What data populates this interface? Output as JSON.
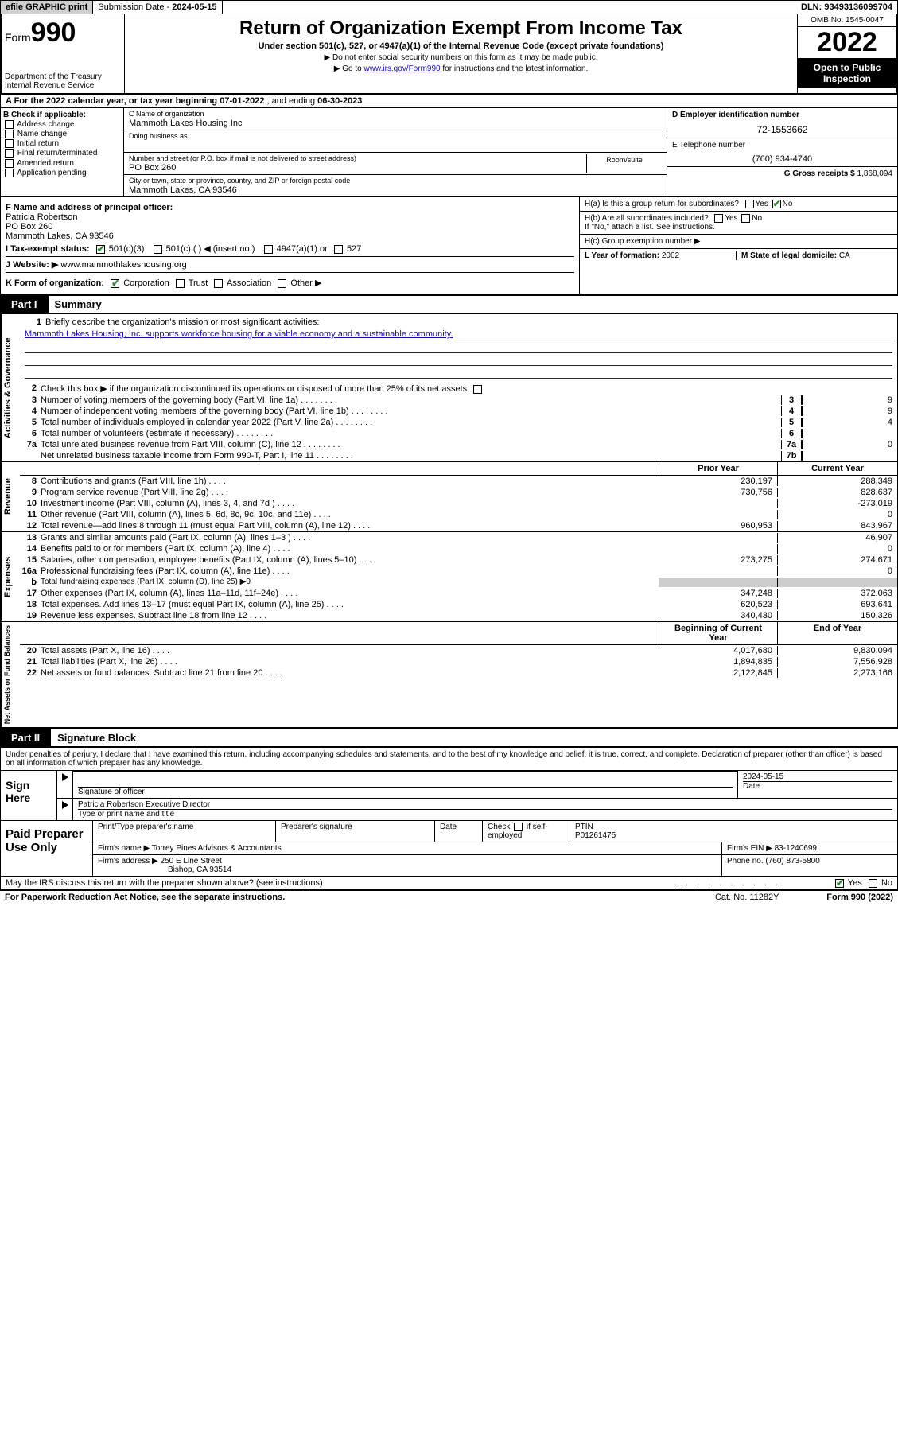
{
  "topbar": {
    "efile": "efile GRAPHIC print",
    "sub_label": "Submission Date - ",
    "sub_date": "2024-05-15",
    "dln_label": "DLN: ",
    "dln": "93493136099704"
  },
  "header": {
    "form_prefix": "Form",
    "form_num": "990",
    "dept": "Department of the Treasury\nInternal Revenue Service",
    "title": "Return of Organization Exempt From Income Tax",
    "sub": "Under section 501(c), 527, or 4947(a)(1) of the Internal Revenue Code (except private foundations)",
    "note1": "▶ Do not enter social security numbers on this form as it may be made public.",
    "note2_a": "▶ Go to ",
    "note2_link": "www.irs.gov/Form990",
    "note2_b": " for instructions and the latest information.",
    "omb": "OMB No. 1545-0047",
    "year": "2022",
    "open": "Open to Public Inspection"
  },
  "line_a": {
    "text_a": "A For the 2022 calendar year, or tax year beginning ",
    "start": "07-01-2022",
    "text_b": " , and ending ",
    "end": "06-30-2023"
  },
  "col_b": {
    "hdr": "B Check if applicable:",
    "opts": [
      "Address change",
      "Name change",
      "Initial return",
      "Final return/terminated",
      "Amended return",
      "Application pending"
    ]
  },
  "col_c": {
    "name_lbl": "C Name of organization",
    "name": "Mammoth Lakes Housing Inc",
    "dba_lbl": "Doing business as",
    "addr_lbl": "Number and street (or P.O. box if mail is not delivered to street address)",
    "room_lbl": "Room/suite",
    "addr": "PO Box 260",
    "city_lbl": "City or town, state or province, country, and ZIP or foreign postal code",
    "city": "Mammoth Lakes, CA  93546"
  },
  "col_de": {
    "d_lbl": "D Employer identification number",
    "d_val": "72-1553662",
    "e_lbl": "E Telephone number",
    "e_val": "(760) 934-4740",
    "g_lbl": "G Gross receipts $ ",
    "g_val": "1,868,094"
  },
  "blk_f": {
    "f_lbl": "F Name and address of principal officer:",
    "f_name": "Patricia Robertson",
    "f_addr1": "PO Box 260",
    "f_addr2": "Mammoth Lakes, CA  93546",
    "i_lbl": "I     Tax-exempt status:",
    "i_501c3": "501(c)(3)",
    "i_501c": "501(c) (  ) ◀ (insert no.)",
    "i_4947": "4947(a)(1) or",
    "i_527": "527",
    "j_lbl": "J    Website: ▶  ",
    "j_val": "www.mammothlakeshousing.org",
    "k_lbl": "K Form of organization:",
    "k_corp": "Corporation",
    "k_trust": "Trust",
    "k_assoc": "Association",
    "k_other": "Other ▶"
  },
  "blk_h": {
    "ha": "H(a)  Is this a group return for subordinates?",
    "yes": "Yes",
    "no": "No",
    "hb": "H(b)  Are all subordinates included?",
    "hb2": "If \"No,\" attach a list. See instructions.",
    "hc": "H(c)  Group exemption number ▶",
    "l_lbl": "L Year of formation: ",
    "l_val": "2002",
    "m_lbl": "M State of legal domicile: ",
    "m_val": "CA"
  },
  "part1": {
    "tab": "Part I",
    "title": "Summary"
  },
  "p1_gov": {
    "q1_lbl": "Briefly describe the organization's mission or most significant activities:",
    "q1_val": "Mammoth Lakes Housing, Inc. supports workforce housing for a viable economy and a sustainable community.",
    "q2": "Check this box ▶  if the organization discontinued its operations or disposed of more than 25% of its net assets.",
    "rows": [
      {
        "n": "3",
        "t": "Number of voting members of the governing body (Part VI, line 1a)",
        "nb": "3",
        "v": "9"
      },
      {
        "n": "4",
        "t": "Number of independent voting members of the governing body (Part VI, line 1b)",
        "nb": "4",
        "v": "9"
      },
      {
        "n": "5",
        "t": "Total number of individuals employed in calendar year 2022 (Part V, line 2a)",
        "nb": "5",
        "v": "4"
      },
      {
        "n": "6",
        "t": "Total number of volunteers (estimate if necessary)",
        "nb": "6",
        "v": ""
      },
      {
        "n": "7a",
        "t": "Total unrelated business revenue from Part VIII, column (C), line 12",
        "nb": "7a",
        "v": "0"
      },
      {
        "n": "",
        "t": "Net unrelated business taxable income from Form 990-T, Part I, line 11",
        "nb": "7b",
        "v": ""
      }
    ],
    "sidelbl": "Activities & Governance"
  },
  "p1_rev": {
    "hdr_b": "b",
    "hdr_py": "Prior Year",
    "hdr_cy": "Current Year",
    "rows": [
      {
        "n": "8",
        "t": "Contributions and grants (Part VIII, line 1h)",
        "py": "230,197",
        "cy": "288,349"
      },
      {
        "n": "9",
        "t": "Program service revenue (Part VIII, line 2g)",
        "py": "730,756",
        "cy": "828,637"
      },
      {
        "n": "10",
        "t": "Investment income (Part VIII, column (A), lines 3, 4, and 7d )",
        "py": "",
        "cy": "-273,019"
      },
      {
        "n": "11",
        "t": "Other revenue (Part VIII, column (A), lines 5, 6d, 8c, 9c, 10c, and 11e)",
        "py": "",
        "cy": "0"
      },
      {
        "n": "12",
        "t": "Total revenue—add lines 8 through 11 (must equal Part VIII, column (A), line 12)",
        "py": "960,953",
        "cy": "843,967"
      }
    ],
    "sidelbl": "Revenue"
  },
  "p1_exp": {
    "rows": [
      {
        "n": "13",
        "t": "Grants and similar amounts paid (Part IX, column (A), lines 1–3 )",
        "py": "",
        "cy": "46,907"
      },
      {
        "n": "14",
        "t": "Benefits paid to or for members (Part IX, column (A), line 4)",
        "py": "",
        "cy": "0"
      },
      {
        "n": "15",
        "t": "Salaries, other compensation, employee benefits (Part IX, column (A), lines 5–10)",
        "py": "273,275",
        "cy": "274,671"
      },
      {
        "n": "16a",
        "t": "Professional fundraising fees (Part IX, column (A), line 11e)",
        "py": "",
        "cy": "0"
      },
      {
        "n": "b",
        "t": "Total fundraising expenses (Part IX, column (D), line 25) ▶0",
        "py": null,
        "cy": null
      },
      {
        "n": "17",
        "t": "Other expenses (Part IX, column (A), lines 11a–11d, 11f–24e)",
        "py": "347,248",
        "cy": "372,063"
      },
      {
        "n": "18",
        "t": "Total expenses. Add lines 13–17 (must equal Part IX, column (A), line 25)",
        "py": "620,523",
        "cy": "693,641"
      },
      {
        "n": "19",
        "t": "Revenue less expenses. Subtract line 18 from line 12",
        "py": "340,430",
        "cy": "150,326"
      }
    ],
    "sidelbl": "Expenses"
  },
  "p1_na": {
    "hdr_by": "Beginning of Current Year",
    "hdr_ey": "End of Year",
    "rows": [
      {
        "n": "20",
        "t": "Total assets (Part X, line 16)",
        "py": "4,017,680",
        "cy": "9,830,094"
      },
      {
        "n": "21",
        "t": "Total liabilities (Part X, line 26)",
        "py": "1,894,835",
        "cy": "7,556,928"
      },
      {
        "n": "22",
        "t": "Net assets or fund balances. Subtract line 21 from line 20",
        "py": "2,122,845",
        "cy": "2,273,166"
      }
    ],
    "sidelbl": "Net Assets or Fund Balances"
  },
  "part2": {
    "tab": "Part II",
    "title": "Signature Block"
  },
  "sig": {
    "decl": "Under penalties of perjury, I declare that I have examined this return, including accompanying schedules and statements, and to the best of my knowledge and belief, it is true, correct, and complete. Declaration of preparer (other than officer) is based on all information of which preparer has any knowledge.",
    "here": "Sign Here",
    "sig_lbl": "Signature of officer",
    "date": "2024-05-15",
    "date_lbl": "Date",
    "name": "Patricia Robertson Executive Director",
    "name_lbl": "Type or print name and title"
  },
  "prep": {
    "lbl": "Paid Preparer Use Only",
    "h1": "Print/Type preparer's name",
    "h2": "Preparer's signature",
    "h3": "Date",
    "h4a": "Check",
    "h4b": "if self-employed",
    "h5": "PTIN",
    "ptin": "P01261475",
    "firm_lbl": "Firm's name    ▶ ",
    "firm": "Torrey Pines Advisors & Accountants",
    "ein_lbl": "Firm's EIN ▶ ",
    "ein": "83-1240699",
    "addr_lbl": "Firm's address ▶ ",
    "addr1": "250 E Line Street",
    "addr2": "Bishop, CA  93514",
    "ph_lbl": "Phone no. ",
    "ph": "(760) 873-5800"
  },
  "may": {
    "q": "May the IRS discuss this return with the preparer shown above? (see instructions)",
    "yes": "Yes",
    "no": "No"
  },
  "footer": {
    "l": "For Paperwork Reduction Act Notice, see the separate instructions.",
    "m": "Cat. No. 11282Y",
    "r": "Form 990 (2022)"
  }
}
